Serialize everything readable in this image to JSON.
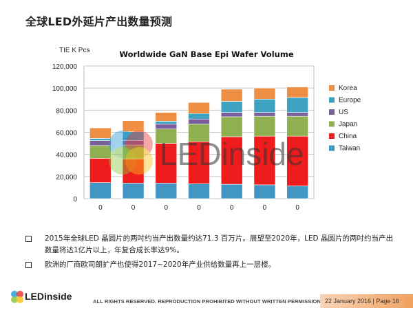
{
  "slide": {
    "title": "全球LED外延片产出数量预测"
  },
  "chart_data": {
    "type": "bar",
    "stacked": true,
    "title": "Worldwide GaN Base Epi Wafer Volume",
    "ylabel": "TIE K Pcs",
    "ylim": [
      0,
      120000
    ],
    "yticks": [
      "0",
      "20,000",
      "40,000",
      "60,000",
      "80,000",
      "100,000",
      "120,000"
    ],
    "categories": [
      "0",
      "0",
      "0",
      "0",
      "0",
      "0",
      "0"
    ],
    "grid": true,
    "legend_position": "right",
    "series": [
      {
        "name": "Taiwan",
        "color": "#4196c3",
        "values": [
          14500,
          14000,
          14000,
          13500,
          13000,
          12500,
          11500
        ]
      },
      {
        "name": "China",
        "color": "#ee1c1c",
        "values": [
          22000,
          22000,
          36000,
          38000,
          43000,
          44000,
          45000
        ]
      },
      {
        "name": "Japan",
        "color": "#8fb050",
        "values": [
          11500,
          12500,
          13000,
          16000,
          18000,
          18000,
          18000
        ]
      },
      {
        "name": "US",
        "color": "#7a5f9c",
        "values": [
          4500,
          4000,
          4500,
          4500,
          4000,
          3500,
          3500
        ]
      },
      {
        "name": "Europe",
        "color": "#3ea2c1",
        "values": [
          2000,
          8000,
          2500,
          5000,
          10000,
          12000,
          13500
        ]
      },
      {
        "name": "Korea",
        "color": "#ee8f43",
        "values": [
          9500,
          10000,
          8000,
          10000,
          11000,
          10000,
          9500
        ]
      }
    ],
    "watermark": "LEDinside"
  },
  "bullets": [
    "2015年全球LED 晶圆片的两吋约当产出数量约达71.3 百万片。展望至2020年，LED 晶圆片的两吋约当产出数量将达1亿片以上，年复合成长率达9%。",
    "欧洲的厂商欧司朗扩产也使得2017~2020年产业供给数量再上一层楼。"
  ],
  "footer": {
    "logo": "LEDinside",
    "rights": "ALL RIGHTS RESERVED. REPRODUCTION PROHIBITED WITHOUT WRITTEN PERMISSION.",
    "date_page": "22 January 2016 | Page 16",
    "accent_color": "#f0a25f"
  }
}
